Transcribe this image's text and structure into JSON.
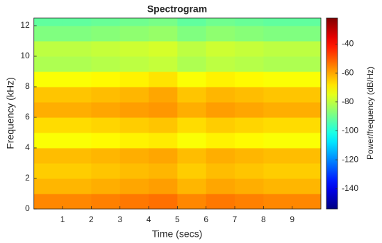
{
  "chart_data": {
    "type": "heatmap",
    "title": "Spectrogram",
    "x_label": "Time (secs)",
    "y_label": "Frequency (kHz)",
    "colorbar_label": "Power/frequency (dB/Hz)",
    "colormap": "jet",
    "xbins": [
      0,
      1,
      2,
      3,
      4,
      5,
      6,
      7,
      8,
      9,
      10
    ],
    "ybins": [
      0,
      1,
      2,
      3,
      4,
      5,
      6,
      7,
      8,
      9,
      10,
      11,
      12,
      12.5
    ],
    "values": [
      [
        -56,
        -56,
        -55,
        -54,
        -53,
        -56,
        -54,
        -55,
        -56,
        -56
      ],
      [
        -62,
        -62,
        -61,
        -60,
        -59,
        -62,
        -60,
        -61,
        -62,
        -62
      ],
      [
        -65,
        -65,
        -64,
        -63,
        -62,
        -65,
        -63,
        -64,
        -65,
        -65
      ],
      [
        -63,
        -63,
        -62,
        -61,
        -60,
        -63,
        -61,
        -62,
        -63,
        -63
      ],
      [
        -72,
        -72,
        -71,
        -70,
        -69,
        -72,
        -70,
        -71,
        -72,
        -72
      ],
      [
        -67,
        -67,
        -66,
        -65,
        -64,
        -67,
        -65,
        -66,
        -67,
        -67
      ],
      [
        -61,
        -61,
        -60,
        -59,
        -58,
        -61,
        -59,
        -60,
        -61,
        -61
      ],
      [
        -64,
        -64,
        -63,
        -62,
        -60,
        -64,
        -62,
        -63,
        -64,
        -64
      ],
      [
        -72,
        -72,
        -71,
        -70,
        -68,
        -72,
        -70,
        -71,
        -72,
        -72
      ],
      [
        -82,
        -82,
        -81,
        -80,
        -79,
        -82,
        -80,
        -81,
        -82,
        -82
      ],
      [
        -80,
        -80,
        -79,
        -78,
        -77,
        -80,
        -78,
        -79,
        -80,
        -80
      ],
      [
        -88,
        -88,
        -87,
        -86,
        -85,
        -88,
        -86,
        -87,
        -88,
        -88
      ],
      [
        -92,
        -92,
        -91,
        -90,
        -89,
        -92,
        -90,
        -91,
        -92,
        -92
      ]
    ],
    "xlim": [
      0,
      10
    ],
    "xticks": [
      1,
      2,
      3,
      4,
      5,
      6,
      7,
      8,
      9
    ],
    "ylim": [
      0,
      12.5
    ],
    "yticks": [
      0,
      2,
      4,
      6,
      8,
      10,
      12
    ],
    "clim": [
      -154,
      -22
    ],
    "cticks": [
      -40,
      -60,
      -80,
      -100,
      -120,
      -140
    ]
  }
}
